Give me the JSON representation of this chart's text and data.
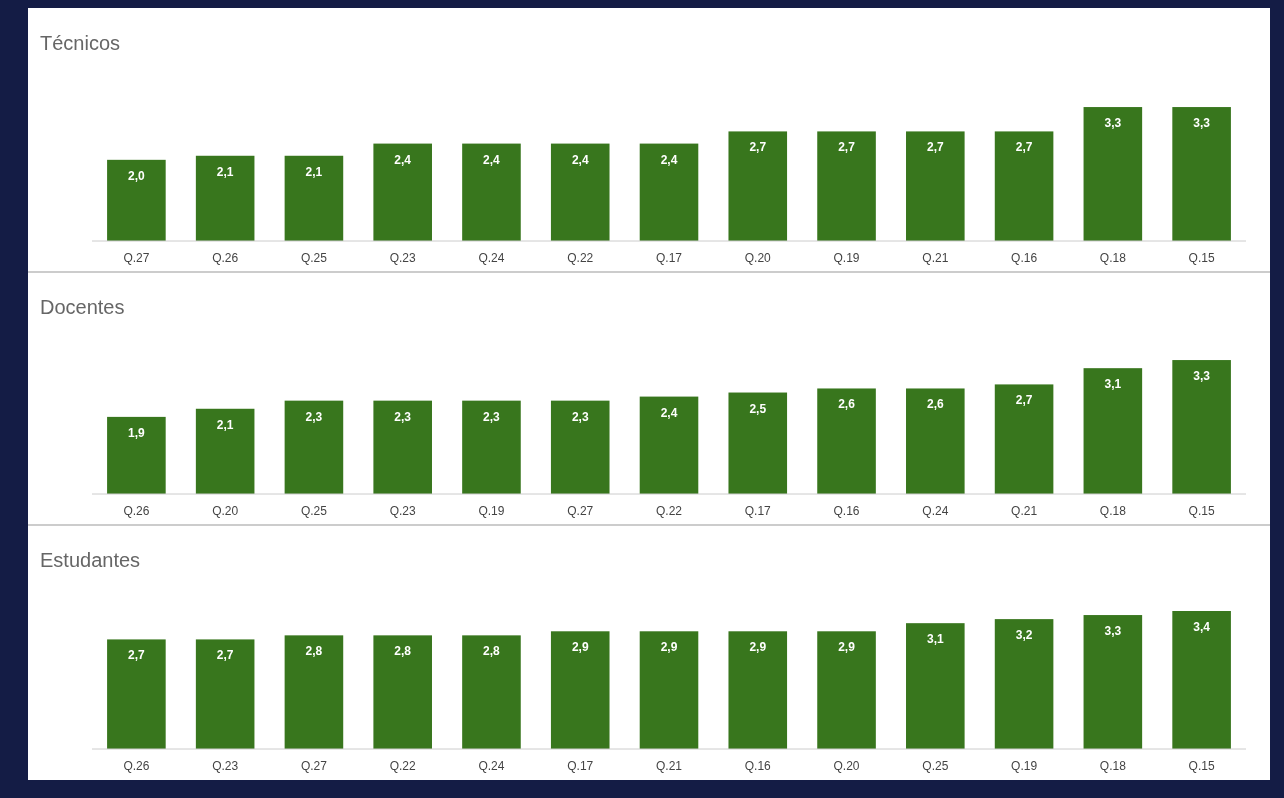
{
  "chart_data": [
    {
      "type": "bar",
      "title": "Técnicos",
      "categories": [
        "Q.27",
        "Q.26",
        "Q.25",
        "Q.23",
        "Q.24",
        "Q.22",
        "Q.17",
        "Q.20",
        "Q.19",
        "Q.21",
        "Q.16",
        "Q.18",
        "Q.15"
      ],
      "values": [
        2.0,
        2.1,
        2.1,
        2.4,
        2.4,
        2.4,
        2.4,
        2.7,
        2.7,
        2.7,
        2.7,
        3.3,
        3.3
      ],
      "value_labels": [
        "2,0",
        "2,1",
        "2,1",
        "2,4",
        "2,4",
        "2,4",
        "2,4",
        "2,7",
        "2,7",
        "2,7",
        "2,7",
        "3,3",
        "3,3"
      ],
      "color": "#38761d"
    },
    {
      "type": "bar",
      "title": "Docentes",
      "categories": [
        "Q.26",
        "Q.20",
        "Q.25",
        "Q.23",
        "Q.19",
        "Q.27",
        "Q.22",
        "Q.17",
        "Q.16",
        "Q.24",
        "Q.21",
        "Q.18",
        "Q.15"
      ],
      "values": [
        1.9,
        2.1,
        2.3,
        2.3,
        2.3,
        2.3,
        2.4,
        2.5,
        2.6,
        2.6,
        2.7,
        3.1,
        3.3
      ],
      "value_labels": [
        "1,9",
        "2,1",
        "2,3",
        "2,3",
        "2,3",
        "2,3",
        "2,4",
        "2,5",
        "2,6",
        "2,6",
        "2,7",
        "3,1",
        "3,3"
      ],
      "color": "#38761d"
    },
    {
      "type": "bar",
      "title": "Estudantes",
      "categories": [
        "Q.26",
        "Q.23",
        "Q.27",
        "Q.22",
        "Q.24",
        "Q.17",
        "Q.21",
        "Q.16",
        "Q.20",
        "Q.25",
        "Q.19",
        "Q.18",
        "Q.15"
      ],
      "values": [
        2.7,
        2.7,
        2.8,
        2.8,
        2.8,
        2.9,
        2.9,
        2.9,
        2.9,
        3.1,
        3.2,
        3.3,
        3.4
      ],
      "value_labels": [
        "2,7",
        "2,7",
        "2,8",
        "2,8",
        "2,8",
        "2,9",
        "2,9",
        "2,9",
        "2,9",
        "3,1",
        "3,2",
        "3,3",
        "3,4"
      ],
      "color": "#38761d"
    }
  ]
}
